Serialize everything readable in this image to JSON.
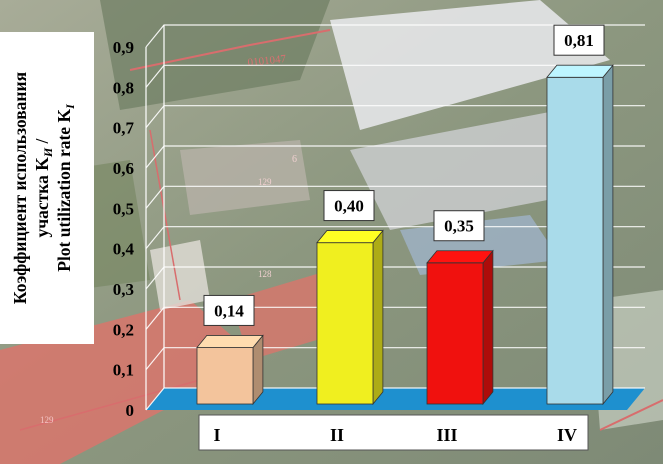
{
  "chart_data": {
    "type": "bar",
    "title": "",
    "ylabel_lines": [
      "Коэффициент использования",
      "участка K",
      "Plot utilization rate K"
    ],
    "ylabel_subscripts": [
      "",
      "И",
      "I"
    ],
    "ylabel_separator": "/",
    "categories": [
      "I",
      "II",
      "III",
      "IV"
    ],
    "values": [
      0.14,
      0.4,
      0.35,
      0.81
    ],
    "data_labels": [
      "0,14",
      "0,40",
      "0,35",
      "0,81"
    ],
    "y_ticks": [
      "0",
      "0,1",
      "0,2",
      "0,3",
      "0,4",
      "0,5",
      "0,6",
      "0,7",
      "0,8",
      "0,9"
    ],
    "ylim": [
      0,
      0.9
    ],
    "grid": true,
    "legend": "none",
    "colors": {
      "I": "#f3c49c",
      "II": "#f0ef1f",
      "III": "#f0110e",
      "IV": "#a9dbea",
      "floor": "#1e90cf",
      "grid": "#ffffff"
    },
    "background_map_labels": [
      "0101047",
      "6",
      "129",
      "128",
      "129"
    ]
  }
}
